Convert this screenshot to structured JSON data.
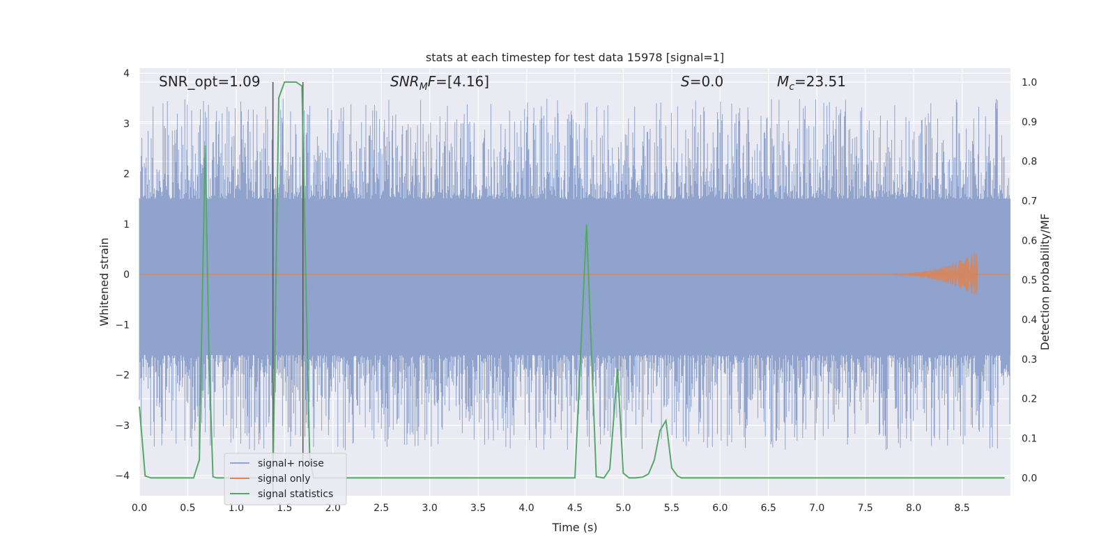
{
  "chart_data": {
    "type": "line",
    "title": "stats at each timestep for test data 15978 [signal=1]",
    "xlabel": "Time (s)",
    "ylabel": "Whitened strain",
    "y2label": "Detection probability/MF",
    "xlim": [
      0.0,
      9.0
    ],
    "ylim": [
      -4.4,
      4.1
    ],
    "y2lim": [
      -0.045,
      1.035
    ],
    "xticks": [
      "0.0",
      "0.5",
      "1.0",
      "1.5",
      "2.0",
      "2.5",
      "3.0",
      "3.5",
      "4.0",
      "4.5",
      "5.0",
      "5.5",
      "6.0",
      "6.5",
      "7.0",
      "7.5",
      "8.0",
      "8.5"
    ],
    "yticks": [
      "4",
      "3",
      "2",
      "1",
      "0",
      "−1",
      "−2",
      "−3",
      "−4"
    ],
    "y2ticks": [
      "1.0",
      "0.9",
      "0.8",
      "0.7",
      "0.6",
      "0.5",
      "0.4",
      "0.3",
      "0.2",
      "0.1",
      "0.0"
    ],
    "grid": true,
    "legend_position": "lower-left",
    "annotations": {
      "snr_opt": "SNR_opt=1.09",
      "snr_mf_pre": "SNR",
      "snr_mf_sub": "M",
      "snr_mf_post": "F",
      "snr_mf_val": "=[4.16]",
      "s_sym": "S",
      "s_val": "=0.0",
      "mc_sym": "M",
      "mc_sub": "c",
      "mc_val": "=23.51"
    },
    "series": [
      {
        "name": "signal+ noise",
        "color": "#8fa3cc",
        "description_band": [
          -1.6,
          1.5
        ]
      },
      {
        "name": "signal only",
        "color": "#dd8452",
        "chirp": {
          "start": 7.5,
          "peak": 8.66,
          "peak_amplitude": 0.45
        }
      },
      {
        "name": "signal statistics",
        "color": "#55a868",
        "x": [
          0.0,
          0.06,
          0.12,
          0.2,
          0.3,
          0.4,
          0.5,
          0.56,
          0.62,
          0.68,
          0.72,
          0.76,
          0.8,
          0.86,
          0.92,
          1.0,
          1.1,
          1.2,
          1.3,
          1.38,
          1.44,
          1.5,
          1.56,
          1.62,
          1.68,
          1.72,
          1.76,
          1.8,
          1.86,
          1.9,
          2.0,
          2.5,
          3.0,
          3.5,
          4.0,
          4.5,
          4.62,
          4.72,
          4.8,
          4.86,
          4.94,
          5.0,
          5.06,
          5.12,
          5.2,
          5.26,
          5.32,
          5.38,
          5.44,
          5.5,
          5.56,
          5.6,
          6.0,
          6.5,
          7.0,
          7.5,
          8.0,
          8.5,
          8.94
        ],
        "values": [
          0.18,
          0.005,
          0.0,
          0.0,
          0.0,
          0.0,
          0.0,
          0.0,
          0.046,
          0.84,
          0.3,
          0.003,
          0.0,
          0.0,
          0.0,
          0.0,
          0.0,
          0.0,
          0.0,
          0.0,
          0.96,
          1.0,
          1.0,
          1.0,
          0.99,
          0.5,
          0.05,
          0.0,
          0.0,
          0.0,
          0.0,
          0.0,
          0.0,
          0.0,
          0.0,
          0.0,
          0.64,
          0.003,
          0.0,
          0.022,
          0.275,
          0.012,
          0.0,
          0.0,
          0.002,
          0.01,
          0.045,
          0.12,
          0.145,
          0.025,
          0.005,
          0.0,
          0.0,
          0.0,
          0.0,
          0.0,
          0.0,
          0.0,
          0.0
        ]
      }
    ],
    "vertical_markers": [
      {
        "x": 1.38,
        "value_top": 1.0,
        "value_bottom": -0.045
      },
      {
        "x": 1.69,
        "value_top": 1.0,
        "value_bottom": -0.045
      }
    ],
    "noise_spike_notes": "blue noise band approx -1.6 to 1.5 with random spikes reaching ~3.7 and ~-4.0"
  }
}
